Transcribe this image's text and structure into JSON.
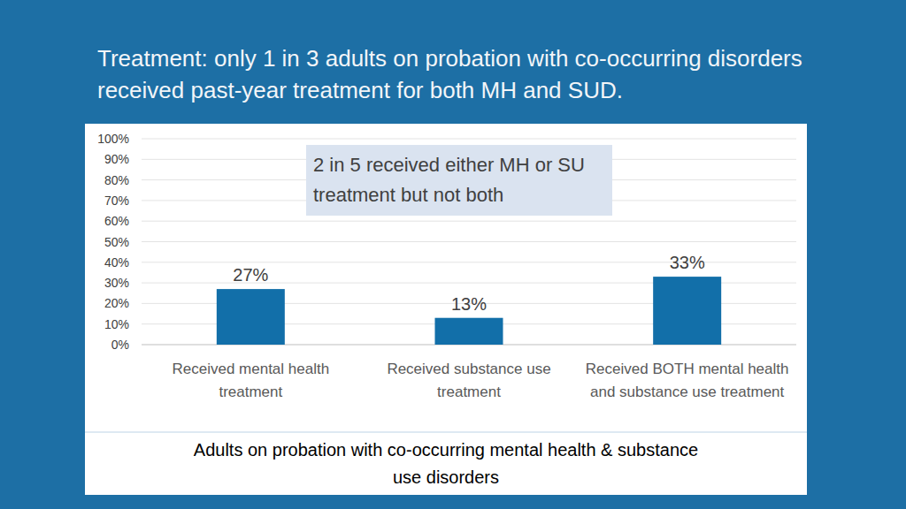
{
  "chart_data": {
    "type": "bar",
    "title": "Treatment: only 1 in 3 adults on probation with co-occurring disorders received past-year treatment for both MH and SUD.",
    "annotation": "2 in 5 received either MH or SU treatment but not both",
    "xlabel": "Adults on probation with co-occurring mental health & substance use disorders",
    "categories": [
      "Received mental health treatment",
      "Received substance use treatment",
      "Received BOTH mental health and substance use treatment"
    ],
    "values": [
      27,
      13,
      33
    ],
    "value_labels": [
      "27%",
      "13%",
      "33%"
    ],
    "color": "#126fa9",
    "ylim": [
      0,
      100
    ],
    "yticks": [
      {
        "value": 0,
        "label": "0%"
      },
      {
        "value": 10,
        "label": "10%"
      },
      {
        "value": 20,
        "label": "20%"
      },
      {
        "value": 30,
        "label": "30%"
      },
      {
        "value": 40,
        "label": "40%"
      },
      {
        "value": 50,
        "label": "50%"
      },
      {
        "value": 60,
        "label": "60%"
      },
      {
        "value": 70,
        "label": "70%"
      },
      {
        "value": 80,
        "label": "80%"
      },
      {
        "value": 90,
        "label": "90%"
      },
      {
        "value": 100,
        "label": "100%"
      }
    ],
    "grid": true,
    "data_labels": true
  }
}
